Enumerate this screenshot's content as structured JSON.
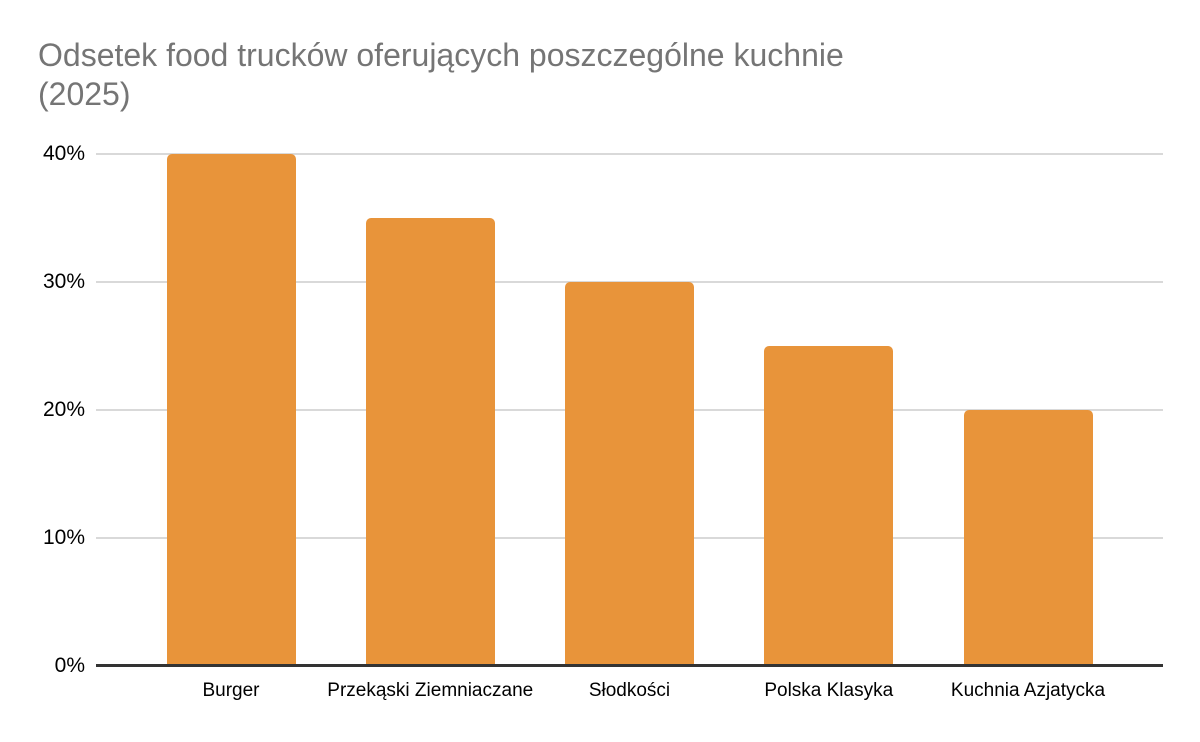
{
  "header": {
    "title_line1": "Odsetek food trucków oferujących poszczególne kuchnie",
    "title_line2": "(2025)"
  },
  "colors": {
    "bar": "#E8943A",
    "title_text": "#757575",
    "axis_label_text": "#000000",
    "gridline": "#D9D9D9",
    "axis_line": "#333333",
    "background": "#FFFFFF"
  },
  "chart_data": {
    "type": "bar",
    "title": "Odsetek food trucków oferujących poszczególne kuchnie (2025)",
    "categories": [
      "Burger",
      "Przekąski Ziemniaczane",
      "Słodkości",
      "Polska Klasyka",
      "Kuchnia Azjatycka"
    ],
    "values": [
      40,
      35,
      30,
      25,
      20
    ],
    "value_unit": "%",
    "xlabel": "",
    "ylabel": "",
    "ylim": [
      0,
      40
    ],
    "yticks": [
      0,
      10,
      20,
      30,
      40
    ],
    "ytick_labels": [
      "0%",
      "10%",
      "20%",
      "30%",
      "40%"
    ],
    "grid": "horizontal",
    "legend_position": "none"
  }
}
